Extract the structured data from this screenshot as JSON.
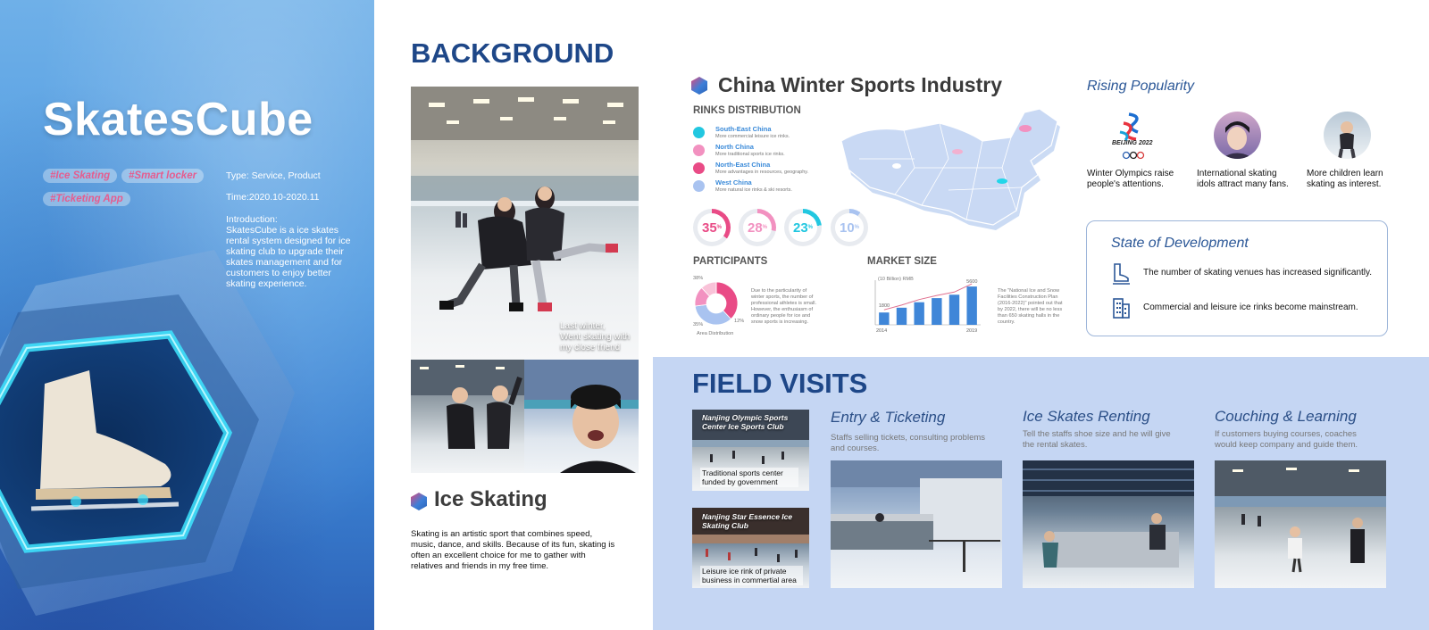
{
  "hero": {
    "title": "SkatesCube",
    "tags": [
      "#Ice Skating",
      "#Smart locker",
      "#Ticketing App"
    ],
    "type": "Type: Service, Product",
    "time": "Time:2020.10-2020.11",
    "intro_label": "Introduction:",
    "intro_text": "SkatesCube is a ice skates rental system designed for ice skating club to upgrade their skates management and for customers to enjoy better skating experience."
  },
  "background": {
    "title": "BACKGROUND",
    "photo_caption": [
      "Last winter,",
      "Went skating with",
      "my close friend"
    ],
    "ice_skating_title": "Ice Skating",
    "ice_skating_text": "Skating is an artistic sport that combines speed, music, dance, and skills. Because of its fun, skating is often an excellent choice for me to gather with relatives and friends in my free time."
  },
  "industry": {
    "title": "China Winter Sports Industry",
    "rinks_label": "RINKS DISTRIBUTION",
    "rinks": [
      {
        "name": "South-East China",
        "desc": "More commercial leisure ice rinks.",
        "color": "#22c7e0"
      },
      {
        "name": "North China",
        "desc": "More traditional sports ice rinks.",
        "color": "#f291c0"
      },
      {
        "name": "North-East China",
        "desc": "More advantages in resources, geography.",
        "color": "#e94b86"
      },
      {
        "name": "West China",
        "desc": "More natural ice rinks & ski resorts.",
        "color": "#a9c3f0"
      }
    ],
    "percentages": [
      {
        "value": "35",
        "unit": "%",
        "fraction": 0.35,
        "color": "#e94b86"
      },
      {
        "value": "28",
        "unit": "%",
        "fraction": 0.28,
        "color": "#f291c0"
      },
      {
        "value": "23",
        "unit": "%",
        "fraction": 0.23,
        "color": "#22c7e0"
      },
      {
        "value": "10",
        "unit": "%",
        "fraction": 0.1,
        "color": "#a9c3f0"
      }
    ],
    "participants_label": "PARTICIPANTS",
    "participants_pct_top": "38%",
    "participants_pct_left": "35%",
    "participants_pct_right": "12%",
    "participants_area": "Area Distribution",
    "participants_note": "Due to the particularity of winter sports, the number of professional athletes is small. However, the enthusiasm of ordinary people for ice and snow sports is increasing.",
    "market_label": "MARKET SIZE",
    "market_note": "The \"National Ice and Snow Facilities Construction Plan (2016-2022)\" pointed out that by 2022, there will be no less than 650 skating halls in the country."
  },
  "chart_data": [
    {
      "type": "bar",
      "title": "",
      "ylabel": "(10 Billion) RMB",
      "categories": [
        "2014",
        "2015",
        "2016",
        "2017",
        "2018",
        "2019"
      ],
      "values": [
        1800,
        2500,
        3300,
        3900,
        4400,
        5600
      ],
      "annotations": [
        "1800",
        "5600"
      ],
      "x_labels_shown": [
        "2014",
        "2019"
      ],
      "ylim": [
        0,
        6000
      ],
      "trend_line": true,
      "grid": false,
      "bar_color": "#3f86d8",
      "line_color": "#e0708f"
    },
    {
      "type": "pie",
      "values": [
        38,
        35,
        15,
        12
      ],
      "colors": [
        "#e94b86",
        "#a9c3f0",
        "#f291c0",
        "#f9c2d8"
      ],
      "labels_shown": [
        "38%",
        "35%",
        "12%"
      ],
      "caption": "Area Distribution"
    }
  ],
  "popularity": {
    "title": "Rising Popularity",
    "logo_text": "BEIJING 2022",
    "items": [
      "Winter Olympics raise people's attentions.",
      "International skating idols attract many fans.",
      "More children learn skating as interest."
    ]
  },
  "state": {
    "title": "State of Development",
    "items": [
      {
        "icon": "skate-icon",
        "text": "The number of skating venues has increased significantly."
      },
      {
        "icon": "building-icon",
        "text": "Commercial and leisure ice rinks become mainstream."
      }
    ]
  },
  "field_visits": {
    "title": "FIELD VISITS",
    "clubs": [
      {
        "name": "Nanjing Olympic Sports Center Ice Sports Club",
        "desc": "Traditional sports center funded by government"
      },
      {
        "name": "Nanjing Star Essence Ice Skating Club",
        "desc": "Leisure ice rink of private business in commertial area"
      }
    ],
    "steps": [
      {
        "title": "Entry & Ticketing",
        "desc": "Staffs selling tickets, consulting problems and courses."
      },
      {
        "title": "Ice Skates Renting",
        "desc": "Tell the staffs shoe size and he will give the rental skates."
      },
      {
        "title": "Couching & Learning",
        "desc": "If customers buying courses, coaches would keep company and guide them."
      }
    ]
  }
}
